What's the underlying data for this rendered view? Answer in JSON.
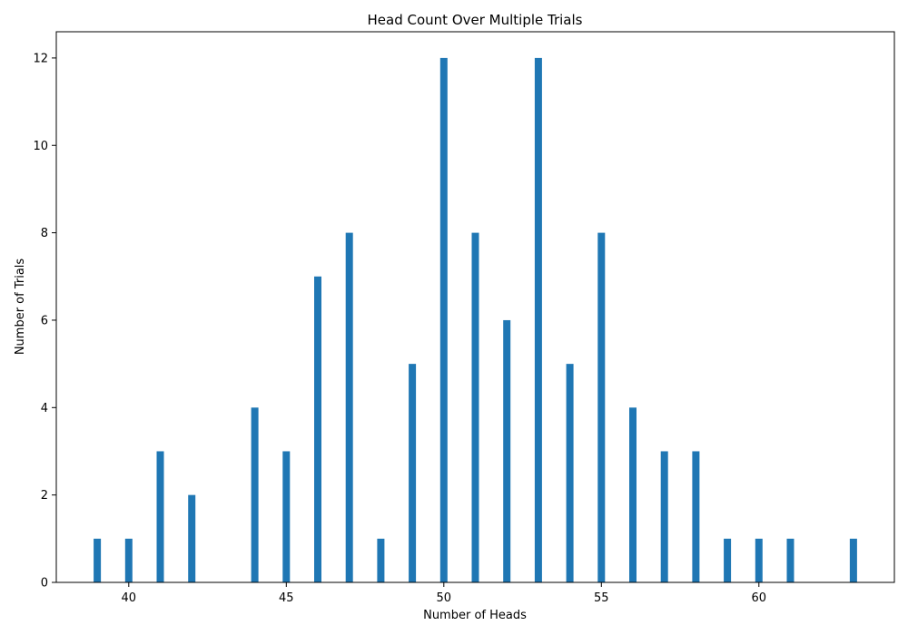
{
  "chart_data": {
    "type": "bar",
    "title": "Head Count Over Multiple Trials",
    "xlabel": "Number of Heads",
    "ylabel": "Number of Trials",
    "x": [
      39,
      40,
      41,
      42,
      44,
      45,
      46,
      47,
      48,
      49,
      50,
      51,
      52,
      53,
      54,
      55,
      56,
      57,
      58,
      59,
      60,
      61,
      63
    ],
    "values": [
      1,
      1,
      3,
      2,
      4,
      3,
      7,
      8,
      1,
      5,
      12,
      8,
      6,
      12,
      5,
      8,
      4,
      3,
      3,
      1,
      1,
      1,
      1
    ],
    "xlim": [
      37.7,
      64.3
    ],
    "ylim": [
      0,
      12.6
    ],
    "xticks": [
      40,
      45,
      50,
      55,
      60
    ],
    "yticks": [
      0,
      2,
      4,
      6,
      8,
      10,
      12
    ],
    "bar_color": "#1f77b4",
    "grid": false,
    "legend": "none"
  }
}
